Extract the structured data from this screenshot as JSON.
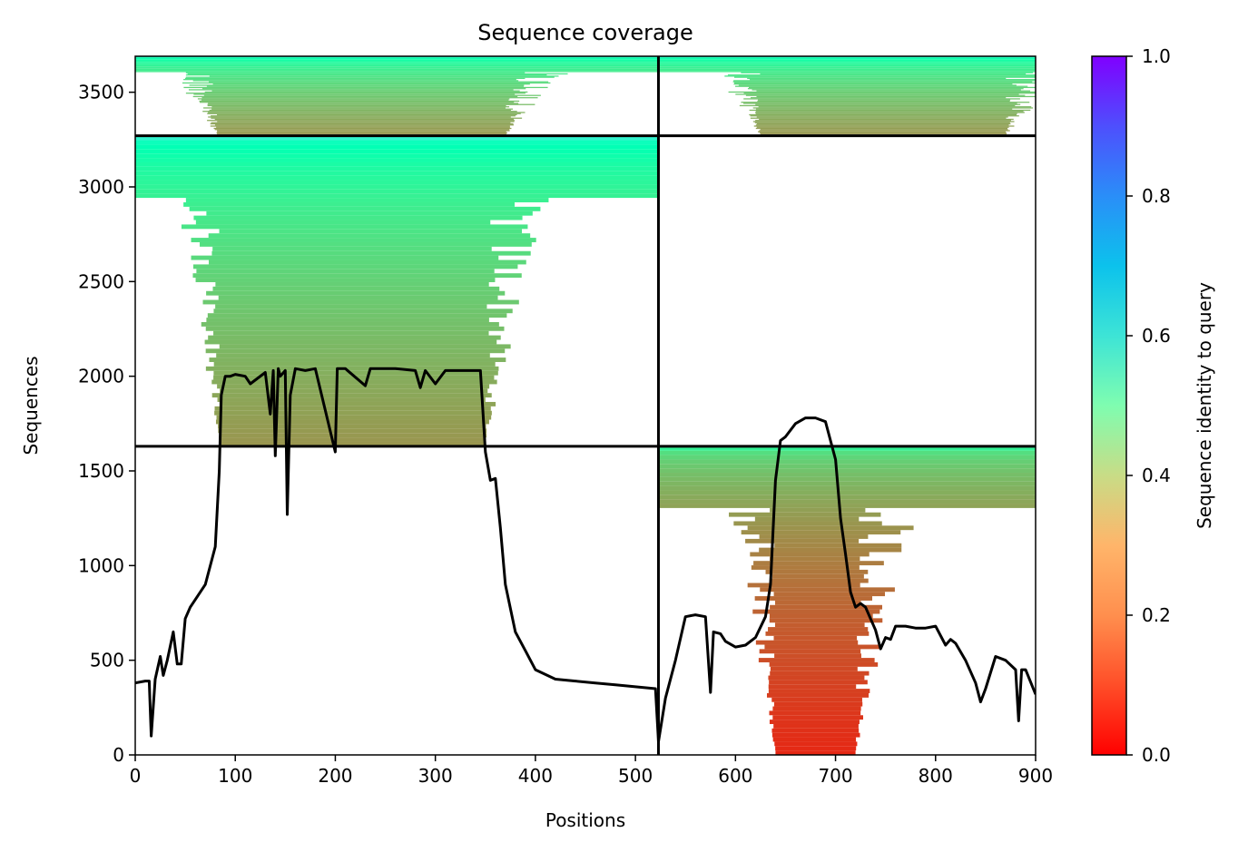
{
  "chart_data": {
    "type": "heatmap",
    "title": "Sequence coverage",
    "xlabel": "Positions",
    "ylabel": "Sequences",
    "xlim": [
      0,
      900
    ],
    "ylim": [
      0,
      3690
    ],
    "xticks": [
      0,
      100,
      200,
      300,
      400,
      500,
      600,
      700,
      800,
      900
    ],
    "yticks": [
      0,
      500,
      1000,
      1500,
      2000,
      2500,
      3000,
      3500
    ],
    "grid": false,
    "chain_boundary_x": 523,
    "block_boundaries_y": [
      1630,
      3270
    ],
    "blocks": [
      {
        "x": [
          0,
          523
        ],
        "y": [
          3270,
          3690
        ],
        "identity_top": 0.55,
        "identity_bottom": 0.2,
        "note_start": 82,
        "note_end": 370
      },
      {
        "x": [
          523,
          900
        ],
        "y": [
          3270,
          3690
        ],
        "identity_top": 0.55,
        "identity_bottom": 0.2,
        "note_start": 625,
        "note_end": 870
      },
      {
        "x": [
          0,
          523
        ],
        "y": [
          1630,
          3270
        ],
        "identity_top": 0.6,
        "identity_bottom": 0.2,
        "note_start": 85,
        "note_end": 350
      },
      {
        "x": [
          523,
          900
        ],
        "y": [
          0,
          1630
        ],
        "identity_top": 0.4,
        "identity_bottom": 0.05,
        "note_start": 640,
        "note_end": 720
      }
    ],
    "coverage_line": {
      "x": [
        0,
        10,
        14,
        16,
        20,
        25,
        28,
        32,
        38,
        42,
        46,
        50,
        55,
        60,
        70,
        80,
        84,
        86,
        90,
        95,
        100,
        110,
        115,
        130,
        135,
        138,
        140,
        143,
        145,
        150,
        152,
        155,
        160,
        170,
        180,
        200,
        202,
        205,
        210,
        230,
        235,
        240,
        260,
        280,
        285,
        290,
        300,
        310,
        325,
        345,
        350,
        355,
        360,
        365,
        370,
        380,
        390,
        400,
        420,
        440,
        460,
        480,
        500,
        520,
        523,
        530,
        540,
        550,
        560,
        570,
        575,
        578,
        585,
        590,
        600,
        610,
        620,
        630,
        635,
        640,
        645,
        650,
        660,
        670,
        680,
        690,
        700,
        705,
        710,
        715,
        720,
        725,
        730,
        740,
        745,
        750,
        755,
        760,
        770,
        780,
        790,
        800,
        810,
        815,
        820,
        830,
        840,
        845,
        850,
        860,
        870,
        880,
        883,
        886,
        890,
        900
      ],
      "y": [
        380,
        390,
        390,
        100,
        400,
        520,
        420,
        500,
        650,
        480,
        480,
        720,
        780,
        820,
        900,
        1100,
        1500,
        1900,
        2000,
        2000,
        2010,
        2000,
        1960,
        2020,
        1800,
        2030,
        1580,
        2040,
        2000,
        2030,
        1270,
        1900,
        2040,
        2030,
        2040,
        1600,
        2040,
        2040,
        2040,
        1950,
        2040,
        2040,
        2040,
        2030,
        1940,
        2030,
        1960,
        2030,
        2030,
        2030,
        1600,
        1450,
        1460,
        1200,
        900,
        650,
        550,
        450,
        400,
        390,
        380,
        370,
        360,
        350,
        70,
        300,
        500,
        730,
        740,
        730,
        330,
        650,
        640,
        600,
        570,
        580,
        620,
        730,
        900,
        1450,
        1660,
        1680,
        1750,
        1780,
        1780,
        1760,
        1560,
        1250,
        1060,
        860,
        780,
        800,
        780,
        660,
        560,
        620,
        610,
        680,
        680,
        670,
        670,
        680,
        580,
        610,
        590,
        500,
        380,
        280,
        350,
        520,
        500,
        450,
        180,
        450,
        450,
        320
      ]
    }
  },
  "colorbar": {
    "label": "Sequence identity to query",
    "ticks": [
      "0.0",
      "0.2",
      "0.4",
      "0.6",
      "0.8",
      "1.0"
    ],
    "colormap": "rainbow_r"
  },
  "colors": {
    "line": "#000000",
    "low_identity": "#ff3a1d",
    "mid_identity": "#f5b96a",
    "high_identity": "#6bfcb4"
  }
}
